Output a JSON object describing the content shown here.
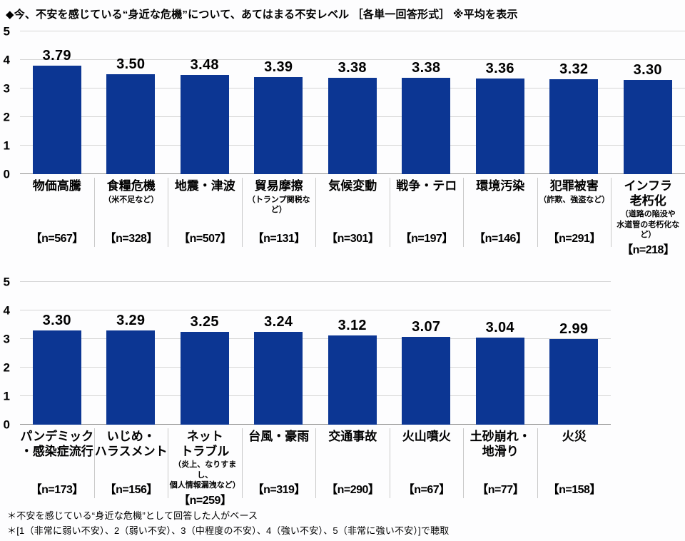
{
  "title": "◆今、不安を感じている“身近な危機”について、あてはまる不安レベル ［各単一回答形式］ ※平均を表示",
  "footnotes": [
    "＊不安を感じている“身近な危機”として回答した人がベース",
    "＊[1（非常に弱い不安）、2（弱い不安）、3（中程度の不安）、4（強い不安）、5（非常に強い不安）]で聴取"
  ],
  "colors": {
    "bar": "#0c3693",
    "grid": "#d6d6d6",
    "axis": "#8f8f8f"
  },
  "chart_data": [
    {
      "type": "bar",
      "title": "不安レベル（平均） 上位1〜9位",
      "ylim": [
        0,
        5
      ],
      "yticks": [
        0,
        1,
        2,
        3,
        4,
        5
      ],
      "grid": true,
      "legend": "none",
      "categories": [
        {
          "label": "物価高騰",
          "sublabel": "",
          "n": "【n=567】",
          "value": 3.79
        },
        {
          "label": "食糧危機",
          "sublabel": "（米不足など）",
          "n": "【n=328】",
          "value": 3.5
        },
        {
          "label": "地震・津波",
          "sublabel": "",
          "n": "【n=507】",
          "value": 3.48
        },
        {
          "label": "貿易摩擦",
          "sublabel": "（トランプ関税など）",
          "n": "【n=131】",
          "value": 3.39
        },
        {
          "label": "気候変動",
          "sublabel": "",
          "n": "【n=301】",
          "value": 3.38
        },
        {
          "label": "戦争・テロ",
          "sublabel": "",
          "n": "【n=197】",
          "value": 3.38
        },
        {
          "label": "環境汚染",
          "sublabel": "",
          "n": "【n=146】",
          "value": 3.36
        },
        {
          "label": "犯罪被害",
          "sublabel": "（詐欺、強盗など）",
          "n": "【n=291】",
          "value": 3.32
        },
        {
          "label": "インフラ\n老朽化",
          "sublabel": "（道路の陥没や\n水道管の老朽化など）",
          "n": "【n=218】",
          "value": 3.3
        }
      ]
    },
    {
      "type": "bar",
      "title": "不安レベル（平均） 10〜17位",
      "ylim": [
        0,
        5
      ],
      "yticks": [
        0,
        1,
        2,
        3,
        4,
        5
      ],
      "grid": true,
      "legend": "none",
      "categories": [
        {
          "label": "パンデミック\n・感染症流行",
          "sublabel": "",
          "n": "【n=173】",
          "value": 3.3
        },
        {
          "label": "いじめ・\nハラスメント",
          "sublabel": "",
          "n": "【n=156】",
          "value": 3.29
        },
        {
          "label": "ネット\nトラブル",
          "sublabel": "（炎上、なりすまし、\n個人情報漏洩など）",
          "n": "【n=259】",
          "value": 3.25
        },
        {
          "label": "台風・豪雨",
          "sublabel": "",
          "n": "【n=319】",
          "value": 3.24
        },
        {
          "label": "交通事故",
          "sublabel": "",
          "n": "【n=290】",
          "value": 3.12
        },
        {
          "label": "火山噴火",
          "sublabel": "",
          "n": "【n=67】",
          "value": 3.07
        },
        {
          "label": "土砂崩れ・\n地滑り",
          "sublabel": "",
          "n": "【n=77】",
          "value": 3.04
        },
        {
          "label": "火災",
          "sublabel": "",
          "n": "【n=158】",
          "value": 2.99
        }
      ]
    }
  ]
}
